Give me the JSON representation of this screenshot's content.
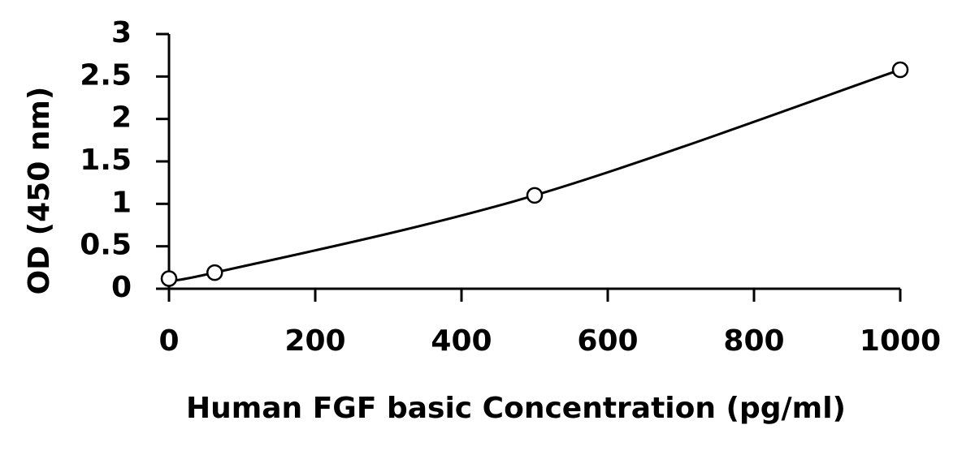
{
  "chart_data": {
    "type": "scatter",
    "x_label": "Human FGF basic Concentration (pg/ml)",
    "y_label": "OD (450 nm)",
    "series": [
      {
        "x": [
          0,
          62.5,
          500,
          1000
        ],
        "values": [
          0.12,
          0.19,
          1.1,
          2.58
        ],
        "color": "#000000"
      }
    ],
    "xlim": [
      0,
      1000
    ],
    "xticks": [
      0,
      200,
      400,
      600,
      800,
      1000
    ],
    "ylim": [
      0,
      3
    ],
    "yticks": [
      0,
      0.5,
      1,
      1.5,
      2,
      2.5,
      3
    ],
    "grid": false
  }
}
